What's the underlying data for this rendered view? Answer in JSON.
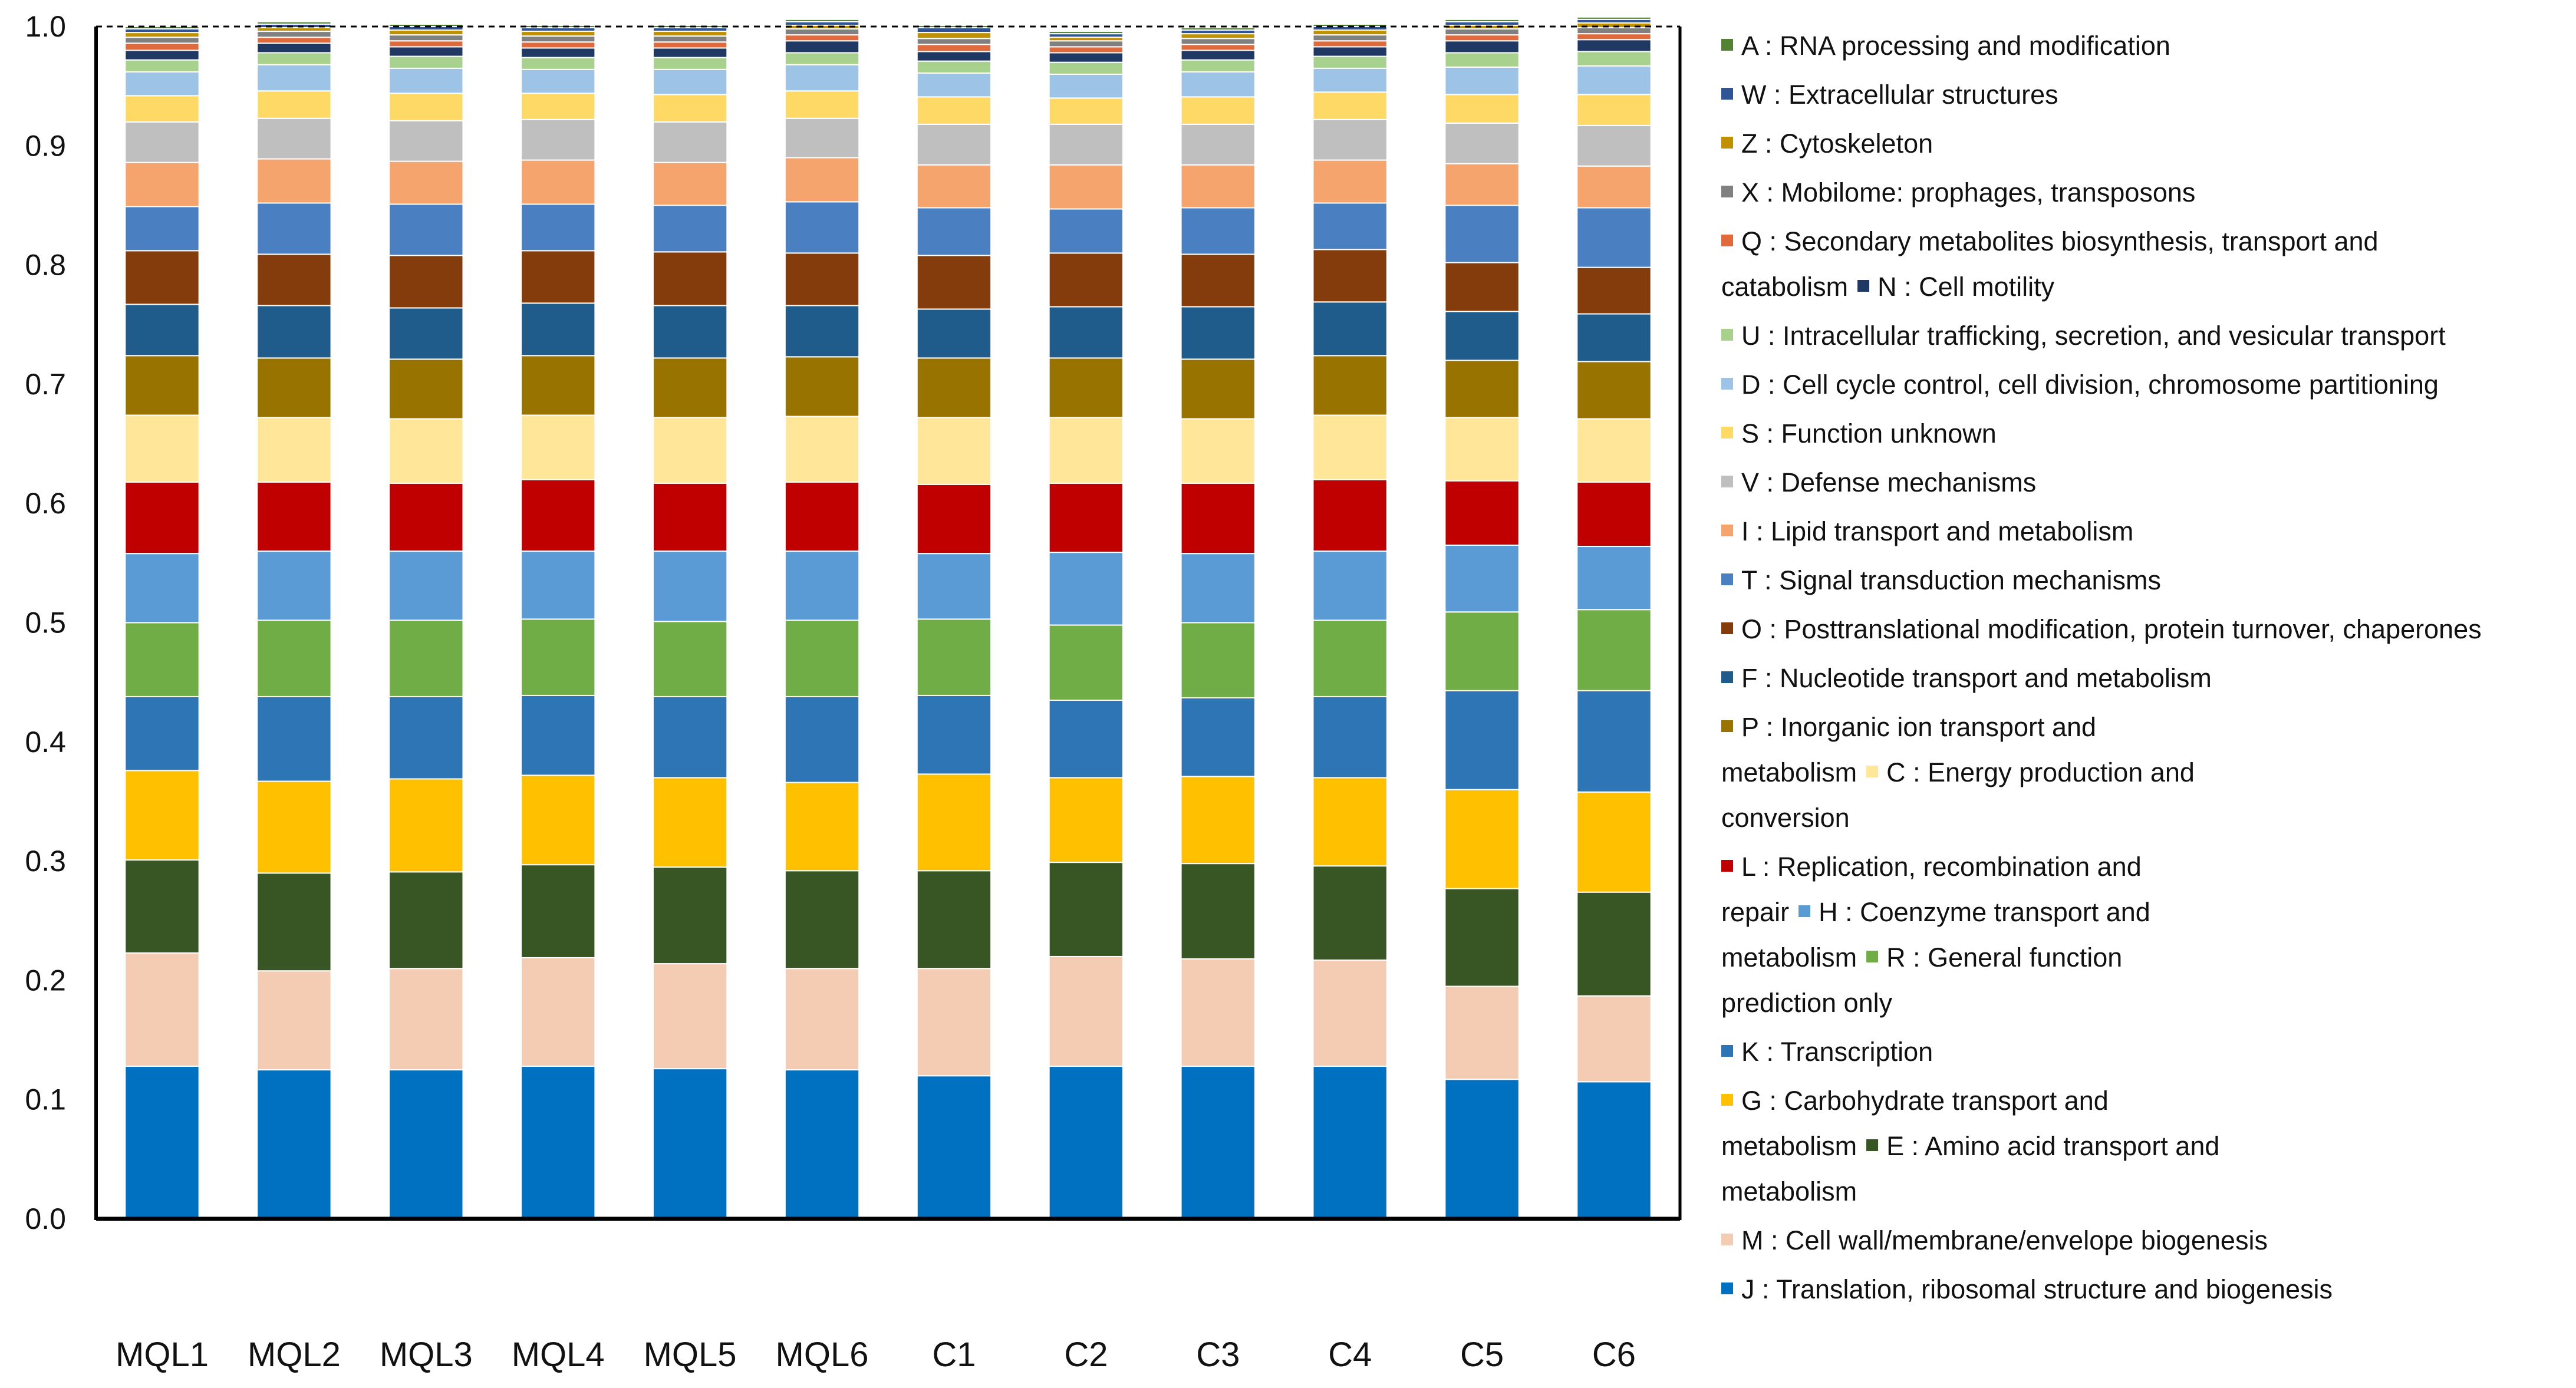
{
  "chart_data": {
    "type": "bar",
    "stacked": true,
    "ylim": [
      0,
      1.0
    ],
    "yticks": [
      "0.0",
      "0.1",
      "0.2",
      "0.3",
      "0.4",
      "0.5",
      "0.6",
      "0.7",
      "0.8",
      "0.9",
      "1.0"
    ],
    "categories": [
      "MQL1",
      "MQL2",
      "MQL3",
      "MQL4",
      "MQL5",
      "MQL6",
      "C1",
      "C2",
      "C3",
      "C4",
      "C5",
      "C6"
    ],
    "series": [
      {
        "key": "J",
        "color": "#0070C0",
        "values": [
          0.128,
          0.125,
          0.125,
          0.128,
          0.126,
          0.125,
          0.12,
          0.128,
          0.128,
          0.128,
          0.117,
          0.115
        ]
      },
      {
        "key": "M",
        "color": "#F4CCB4",
        "values": [
          0.095,
          0.083,
          0.085,
          0.091,
          0.088,
          0.085,
          0.09,
          0.092,
          0.09,
          0.089,
          0.078,
          0.072
        ]
      },
      {
        "key": "E",
        "color": "#375623",
        "values": [
          0.078,
          0.082,
          0.081,
          0.078,
          0.081,
          0.082,
          0.082,
          0.079,
          0.08,
          0.079,
          0.082,
          0.087
        ]
      },
      {
        "key": "G",
        "color": "#FFC000",
        "values": [
          0.075,
          0.077,
          0.078,
          0.075,
          0.075,
          0.074,
          0.081,
          0.071,
          0.073,
          0.074,
          0.083,
          0.084
        ]
      },
      {
        "key": "K",
        "color": "#2E75B6",
        "values": [
          0.062,
          0.071,
          0.069,
          0.067,
          0.068,
          0.072,
          0.066,
          0.065,
          0.066,
          0.068,
          0.083,
          0.085
        ]
      },
      {
        "key": "R",
        "color": "#70AD47",
        "values": [
          0.062,
          0.064,
          0.064,
          0.064,
          0.063,
          0.064,
          0.064,
          0.063,
          0.063,
          0.064,
          0.066,
          0.068
        ]
      },
      {
        "key": "H",
        "color": "#5B9BD5",
        "values": [
          0.058,
          0.058,
          0.058,
          0.057,
          0.059,
          0.058,
          0.055,
          0.061,
          0.058,
          0.058,
          0.056,
          0.053
        ]
      },
      {
        "key": "L",
        "color": "#C00000",
        "values": [
          0.06,
          0.058,
          0.057,
          0.06,
          0.057,
          0.058,
          0.058,
          0.058,
          0.059,
          0.06,
          0.054,
          0.054
        ]
      },
      {
        "key": "C",
        "color": "#FFE699",
        "values": [
          0.056,
          0.054,
          0.054,
          0.054,
          0.055,
          0.055,
          0.056,
          0.055,
          0.054,
          0.054,
          0.053,
          0.053
        ]
      },
      {
        "key": "P",
        "color": "#997300",
        "values": [
          0.05,
          0.05,
          0.05,
          0.05,
          0.05,
          0.05,
          0.05,
          0.05,
          0.05,
          0.05,
          0.048,
          0.048
        ]
      },
      {
        "key": "F",
        "color": "#1F5C8C",
        "values": [
          0.043,
          0.044,
          0.043,
          0.044,
          0.044,
          0.043,
          0.041,
          0.043,
          0.044,
          0.045,
          0.041,
          0.04
        ]
      },
      {
        "key": "O",
        "color": "#843C0C",
        "values": [
          0.045,
          0.043,
          0.044,
          0.044,
          0.045,
          0.044,
          0.045,
          0.045,
          0.044,
          0.044,
          0.041,
          0.039
        ]
      },
      {
        "key": "T",
        "color": "#4A7FC1",
        "values": [
          0.037,
          0.043,
          0.043,
          0.039,
          0.039,
          0.043,
          0.04,
          0.037,
          0.039,
          0.039,
          0.048,
          0.05
        ]
      },
      {
        "key": "I",
        "color": "#F4A46C",
        "values": [
          0.037,
          0.037,
          0.036,
          0.037,
          0.036,
          0.037,
          0.036,
          0.037,
          0.036,
          0.036,
          0.035,
          0.035
        ]
      },
      {
        "key": "V",
        "color": "#BFBFBF",
        "values": [
          0.034,
          0.034,
          0.034,
          0.034,
          0.034,
          0.033,
          0.034,
          0.034,
          0.034,
          0.034,
          0.034,
          0.034
        ]
      },
      {
        "key": "S",
        "color": "#FFD966",
        "values": [
          0.022,
          0.023,
          0.023,
          0.022,
          0.023,
          0.023,
          0.023,
          0.022,
          0.023,
          0.023,
          0.024,
          0.026
        ]
      },
      {
        "key": "D",
        "color": "#9DC3E6",
        "values": [
          0.02,
          0.022,
          0.021,
          0.02,
          0.021,
          0.022,
          0.02,
          0.02,
          0.021,
          0.02,
          0.023,
          0.024
        ]
      },
      {
        "key": "U",
        "color": "#A9D18E",
        "values": [
          0.01,
          0.01,
          0.01,
          0.01,
          0.01,
          0.01,
          0.01,
          0.01,
          0.01,
          0.01,
          0.012,
          0.012
        ]
      },
      {
        "key": "N",
        "color": "#203864",
        "values": [
          0.008,
          0.008,
          0.008,
          0.008,
          0.008,
          0.01,
          0.008,
          0.008,
          0.008,
          0.008,
          0.01,
          0.01
        ]
      },
      {
        "key": "Q",
        "color": "#E06A3C",
        "values": [
          0.006,
          0.005,
          0.005,
          0.005,
          0.005,
          0.005,
          0.006,
          0.005,
          0.005,
          0.005,
          0.005,
          0.005
        ]
      },
      {
        "key": "X",
        "color": "#808080",
        "values": [
          0.005,
          0.005,
          0.005,
          0.005,
          0.005,
          0.005,
          0.005,
          0.005,
          0.005,
          0.005,
          0.005,
          0.005
        ]
      },
      {
        "key": "Z",
        "color": "#BF9000",
        "values": [
          0.004,
          0.003,
          0.004,
          0.004,
          0.004,
          0.003,
          0.005,
          0.003,
          0.004,
          0.004,
          0.003,
          0.004
        ]
      },
      {
        "key": "W",
        "color": "#2F5597",
        "values": [
          0.003,
          0.003,
          0.003,
          0.003,
          0.003,
          0.003,
          0.004,
          0.003,
          0.003,
          0.003,
          0.003,
          0.003
        ]
      },
      {
        "key": "A",
        "color": "#548235",
        "values": [
          0.002,
          0.002,
          0.002,
          0.002,
          0.002,
          0.002,
          0.002,
          0.002,
          0.002,
          0.002,
          0.002,
          0.002
        ]
      }
    ],
    "legend": {
      "position": "right",
      "entries": [
        {
          "lines": [
            [
              {
                "key": "A",
                "text": "A : RNA processing and modification"
              }
            ]
          ]
        },
        {
          "lines": [
            [
              {
                "key": "W",
                "text": "W : Extracellular structures"
              }
            ]
          ]
        },
        {
          "lines": [
            [
              {
                "key": "Z",
                "text": "Z : Cytoskeleton"
              }
            ]
          ]
        },
        {
          "lines": [
            [
              {
                "key": "X",
                "text": "X : Mobilome: prophages, transposons"
              }
            ]
          ]
        },
        {
          "lines": [
            [
              {
                "key": "Q",
                "text": "Q : Secondary metabolites biosynthesis, transport and"
              }
            ],
            [
              {
                "key": null,
                "text": "catabolism"
              },
              {
                "key": "N",
                "text": "N : Cell motility"
              }
            ]
          ]
        },
        {
          "lines": [
            [
              {
                "key": "U",
                "text": "U : Intracellular trafficking, secretion, and vesicular transport"
              }
            ]
          ]
        },
        {
          "lines": [
            [
              {
                "key": "D",
                "text": "D : Cell cycle control, cell division, chromosome partitioning"
              }
            ]
          ]
        },
        {
          "lines": [
            [
              {
                "key": "S",
                "text": "S : Function unknown"
              }
            ]
          ]
        },
        {
          "lines": [
            [
              {
                "key": "V",
                "text": "V : Defense mechanisms"
              }
            ]
          ]
        },
        {
          "lines": [
            [
              {
                "key": "I",
                "text": "I : Lipid transport and metabolism"
              }
            ]
          ]
        },
        {
          "lines": [
            [
              {
                "key": "T",
                "text": "T : Signal transduction mechanisms"
              }
            ]
          ]
        },
        {
          "lines": [
            [
              {
                "key": "O",
                "text": "O : Posttranslational modification, protein turnover, chaperones"
              }
            ]
          ]
        },
        {
          "lines": [
            [
              {
                "key": "F",
                "text": "F : Nucleotide transport and metabolism"
              }
            ]
          ]
        },
        {
          "lines": [
            [
              {
                "key": "P",
                "text": "P : Inorganic ion transport and"
              }
            ],
            [
              {
                "key": null,
                "text": "metabolism"
              },
              {
                "key": "C",
                "text": "C : Energy production and"
              }
            ],
            [
              {
                "key": null,
                "text": "conversion"
              }
            ]
          ]
        },
        {
          "lines": [
            [
              {
                "key": "L",
                "text": "L : Replication, recombination and"
              }
            ],
            [
              {
                "key": null,
                "text": "repair"
              },
              {
                "key": "H",
                "text": "H : Coenzyme transport and"
              }
            ],
            [
              {
                "key": null,
                "text": "metabolism"
              },
              {
                "key": "R",
                "text": "R : General function"
              }
            ],
            [
              {
                "key": null,
                "text": "prediction only"
              }
            ]
          ]
        },
        {
          "lines": [
            [
              {
                "key": "K",
                "text": "K : Transcription"
              }
            ]
          ]
        },
        {
          "lines": [
            [
              {
                "key": "G",
                "text": "G : Carbohydrate transport and"
              }
            ],
            [
              {
                "key": null,
                "text": "metabolism"
              },
              {
                "key": "E",
                "text": "E : Amino acid transport and"
              }
            ],
            [
              {
                "key": null,
                "text": "metabolism"
              }
            ]
          ]
        },
        {
          "lines": [
            [
              {
                "key": "M",
                "text": "M : Cell wall/membrane/envelope biogenesis"
              }
            ]
          ]
        },
        {
          "lines": [
            [
              {
                "key": "J",
                "text": "J : Translation, ribosomal structure and biogenesis"
              }
            ]
          ]
        }
      ]
    }
  }
}
